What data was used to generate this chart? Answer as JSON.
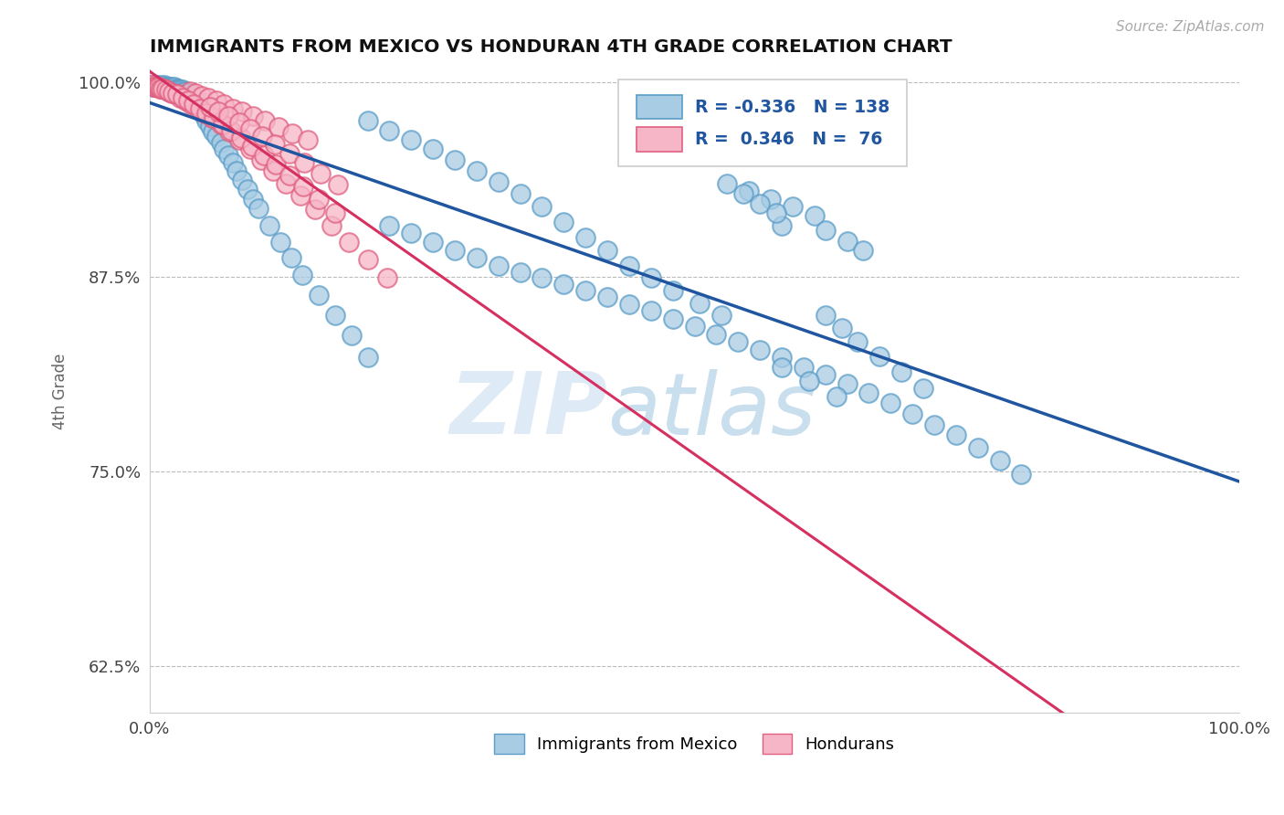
{
  "title": "IMMIGRANTS FROM MEXICO VS HONDURAN 4TH GRADE CORRELATION CHART",
  "source": "Source: ZipAtlas.com",
  "ylabel": "4th Grade",
  "xlim": [
    0,
    1
  ],
  "ylim": [
    0.595,
    1.008
  ],
  "yticks": [
    0.625,
    0.75,
    0.875,
    1.0
  ],
  "ytick_labels": [
    "62.5%",
    "75.0%",
    "87.5%",
    "100.0%"
  ],
  "xtick_labels": [
    "0.0%",
    "100.0%"
  ],
  "blue_color": "#a8cce4",
  "blue_edge": "#5b9dc8",
  "pink_color": "#f7b6c8",
  "pink_edge": "#e06080",
  "blue_line_color": "#2055a0",
  "pink_line_color": "#d63060",
  "R_blue": -0.336,
  "N_blue": 138,
  "R_pink": 0.346,
  "N_pink": 76,
  "legend_blue_label": "Immigrants from Mexico",
  "legend_pink_label": "Hondurans",
  "watermark_zip": "ZIP",
  "watermark_atlas": "atlas",
  "background_color": "#ffffff",
  "blue_points_x": [
    0.002,
    0.003,
    0.004,
    0.005,
    0.006,
    0.007,
    0.008,
    0.009,
    0.01,
    0.011,
    0.012,
    0.013,
    0.014,
    0.015,
    0.016,
    0.017,
    0.018,
    0.019,
    0.02,
    0.021,
    0.022,
    0.023,
    0.024,
    0.025,
    0.026,
    0.027,
    0.028,
    0.029,
    0.03,
    0.031,
    0.032,
    0.033,
    0.034,
    0.035,
    0.036,
    0.037,
    0.038,
    0.039,
    0.04,
    0.041,
    0.042,
    0.043,
    0.044,
    0.045,
    0.046,
    0.047,
    0.048,
    0.049,
    0.05,
    0.052,
    0.055,
    0.058,
    0.061,
    0.065,
    0.068,
    0.072,
    0.076,
    0.08,
    0.085,
    0.09,
    0.095,
    0.1,
    0.11,
    0.12,
    0.13,
    0.14,
    0.155,
    0.17,
    0.185,
    0.2,
    0.22,
    0.24,
    0.26,
    0.28,
    0.3,
    0.32,
    0.34,
    0.36,
    0.38,
    0.4,
    0.42,
    0.44,
    0.46,
    0.48,
    0.5,
    0.52,
    0.54,
    0.56,
    0.58,
    0.6,
    0.62,
    0.64,
    0.66,
    0.68,
    0.7,
    0.72,
    0.74,
    0.76,
    0.78,
    0.8,
    0.55,
    0.57,
    0.59,
    0.61,
    0.58,
    0.62,
    0.64,
    0.655,
    0.53,
    0.545,
    0.56,
    0.575,
    0.62,
    0.635,
    0.65,
    0.67,
    0.69,
    0.71,
    0.58,
    0.605,
    0.63,
    0.505,
    0.525,
    0.48,
    0.46,
    0.44,
    0.42,
    0.4,
    0.38,
    0.36,
    0.34,
    0.32,
    0.3,
    0.28,
    0.26,
    0.24,
    0.22,
    0.2
  ],
  "blue_points_y": [
    0.998,
    0.997,
    0.997,
    0.998,
    0.997,
    0.998,
    0.997,
    0.997,
    0.998,
    0.997,
    0.997,
    0.998,
    0.997,
    0.997,
    0.996,
    0.997,
    0.997,
    0.996,
    0.997,
    0.996,
    0.996,
    0.997,
    0.996,
    0.995,
    0.996,
    0.995,
    0.995,
    0.994,
    0.995,
    0.994,
    0.993,
    0.994,
    0.993,
    0.992,
    0.993,
    0.992,
    0.991,
    0.991,
    0.99,
    0.989,
    0.988,
    0.987,
    0.986,
    0.985,
    0.984,
    0.982,
    0.981,
    0.98,
    0.978,
    0.975,
    0.972,
    0.968,
    0.965,
    0.961,
    0.957,
    0.953,
    0.948,
    0.943,
    0.937,
    0.931,
    0.925,
    0.919,
    0.908,
    0.897,
    0.887,
    0.876,
    0.863,
    0.85,
    0.837,
    0.823,
    0.908,
    0.903,
    0.897,
    0.892,
    0.887,
    0.882,
    0.878,
    0.874,
    0.87,
    0.866,
    0.862,
    0.857,
    0.853,
    0.848,
    0.843,
    0.838,
    0.833,
    0.828,
    0.823,
    0.817,
    0.812,
    0.806,
    0.8,
    0.794,
    0.787,
    0.78,
    0.773,
    0.765,
    0.757,
    0.748,
    0.93,
    0.925,
    0.92,
    0.914,
    0.908,
    0.905,
    0.898,
    0.892,
    0.935,
    0.928,
    0.922,
    0.916,
    0.85,
    0.842,
    0.833,
    0.824,
    0.814,
    0.803,
    0.817,
    0.808,
    0.798,
    0.858,
    0.85,
    0.866,
    0.874,
    0.882,
    0.892,
    0.9,
    0.91,
    0.92,
    0.928,
    0.936,
    0.943,
    0.95,
    0.957,
    0.963,
    0.969,
    0.975
  ],
  "pink_points_x": [
    0.002,
    0.003,
    0.005,
    0.007,
    0.009,
    0.011,
    0.014,
    0.017,
    0.02,
    0.024,
    0.028,
    0.033,
    0.038,
    0.044,
    0.05,
    0.057,
    0.065,
    0.073,
    0.082,
    0.092,
    0.102,
    0.113,
    0.125,
    0.138,
    0.152,
    0.167,
    0.183,
    0.2,
    0.218,
    0.037,
    0.042,
    0.048,
    0.054,
    0.061,
    0.068,
    0.076,
    0.085,
    0.095,
    0.106,
    0.118,
    0.131,
    0.145,
    0.008,
    0.01,
    0.012,
    0.015,
    0.018,
    0.021,
    0.025,
    0.03,
    0.035,
    0.04,
    0.046,
    0.052,
    0.059,
    0.067,
    0.075,
    0.084,
    0.094,
    0.105,
    0.116,
    0.128,
    0.141,
    0.155,
    0.17,
    0.055,
    0.063,
    0.072,
    0.082,
    0.092,
    0.103,
    0.115,
    0.128,
    0.142,
    0.157,
    0.173
  ],
  "pink_points_y": [
    0.998,
    0.997,
    0.997,
    0.997,
    0.996,
    0.996,
    0.995,
    0.994,
    0.993,
    0.992,
    0.99,
    0.988,
    0.986,
    0.983,
    0.98,
    0.977,
    0.973,
    0.968,
    0.963,
    0.957,
    0.95,
    0.943,
    0.935,
    0.927,
    0.918,
    0.908,
    0.897,
    0.886,
    0.874,
    0.994,
    0.993,
    0.991,
    0.99,
    0.988,
    0.986,
    0.983,
    0.981,
    0.978,
    0.975,
    0.971,
    0.967,
    0.963,
    0.997,
    0.996,
    0.996,
    0.995,
    0.994,
    0.993,
    0.992,
    0.99,
    0.988,
    0.986,
    0.983,
    0.98,
    0.977,
    0.973,
    0.969,
    0.964,
    0.959,
    0.953,
    0.947,
    0.94,
    0.933,
    0.925,
    0.916,
    0.984,
    0.981,
    0.978,
    0.974,
    0.97,
    0.965,
    0.96,
    0.954,
    0.948,
    0.941,
    0.934
  ]
}
